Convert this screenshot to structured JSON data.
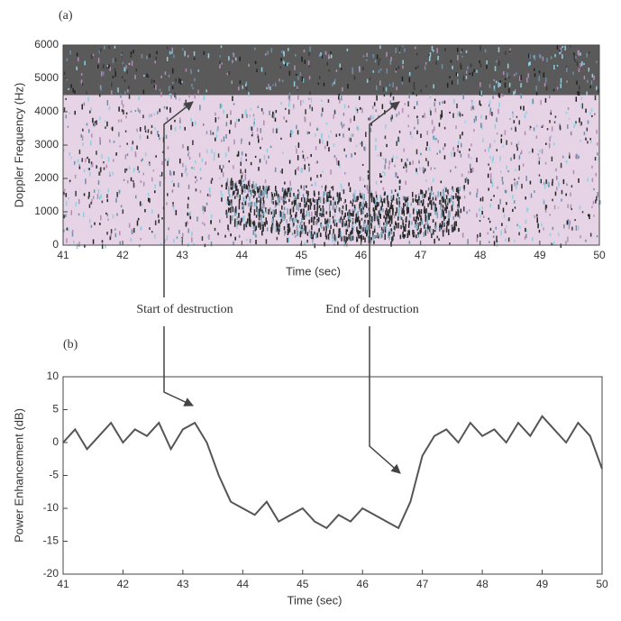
{
  "chart_data": [
    {
      "type": "spectrogram",
      "label": "(a)",
      "xlabel": "Time (sec)",
      "ylabel": "Doppler Frequency (Hz)",
      "xlim": [
        41,
        50
      ],
      "xticks": [
        41,
        42,
        43,
        44,
        45,
        46,
        47,
        48,
        49,
        50
      ],
      "ylim": [
        0,
        6000
      ],
      "yticks": [
        0,
        1000,
        2000,
        3000,
        4000,
        5000,
        6000
      ],
      "annotations": [
        "Start of destruction",
        "End of destruction"
      ]
    },
    {
      "type": "line",
      "label": "(b)",
      "xlabel": "Time (sec)",
      "ylabel": "Power Enhancement (dB)",
      "xlim": [
        41,
        50
      ],
      "xticks": [
        41,
        42,
        43,
        44,
        45,
        46,
        47,
        48,
        49,
        50
      ],
      "ylim": [
        -20,
        10
      ],
      "yticks": [
        -20,
        -15,
        -10,
        -5,
        0,
        5,
        10
      ],
      "color": "#555555",
      "x": [
        41.0,
        41.2,
        41.4,
        41.6,
        41.8,
        42.0,
        42.2,
        42.4,
        42.6,
        42.8,
        43.0,
        43.2,
        43.4,
        43.6,
        43.8,
        44.0,
        44.2,
        44.4,
        44.6,
        44.8,
        45.0,
        45.2,
        45.4,
        45.6,
        45.8,
        46.0,
        46.2,
        46.4,
        46.6,
        46.8,
        47.0,
        47.2,
        47.4,
        47.6,
        47.8,
        48.0,
        48.2,
        48.4,
        48.6,
        48.8,
        49.0,
        49.2,
        49.4,
        49.6,
        49.8,
        50.0
      ],
      "values": [
        0,
        2,
        -1,
        1,
        3,
        0,
        2,
        1,
        3,
        -1,
        2,
        3,
        0,
        -5,
        -9,
        -10,
        -11,
        -9,
        -12,
        -11,
        -10,
        -12,
        -13,
        -11,
        -12,
        -10,
        -11,
        -12,
        -13,
        -9,
        -2,
        1,
        2,
        0,
        3,
        1,
        2,
        0,
        3,
        1,
        4,
        2,
        0,
        3,
        1,
        -4
      ]
    }
  ]
}
